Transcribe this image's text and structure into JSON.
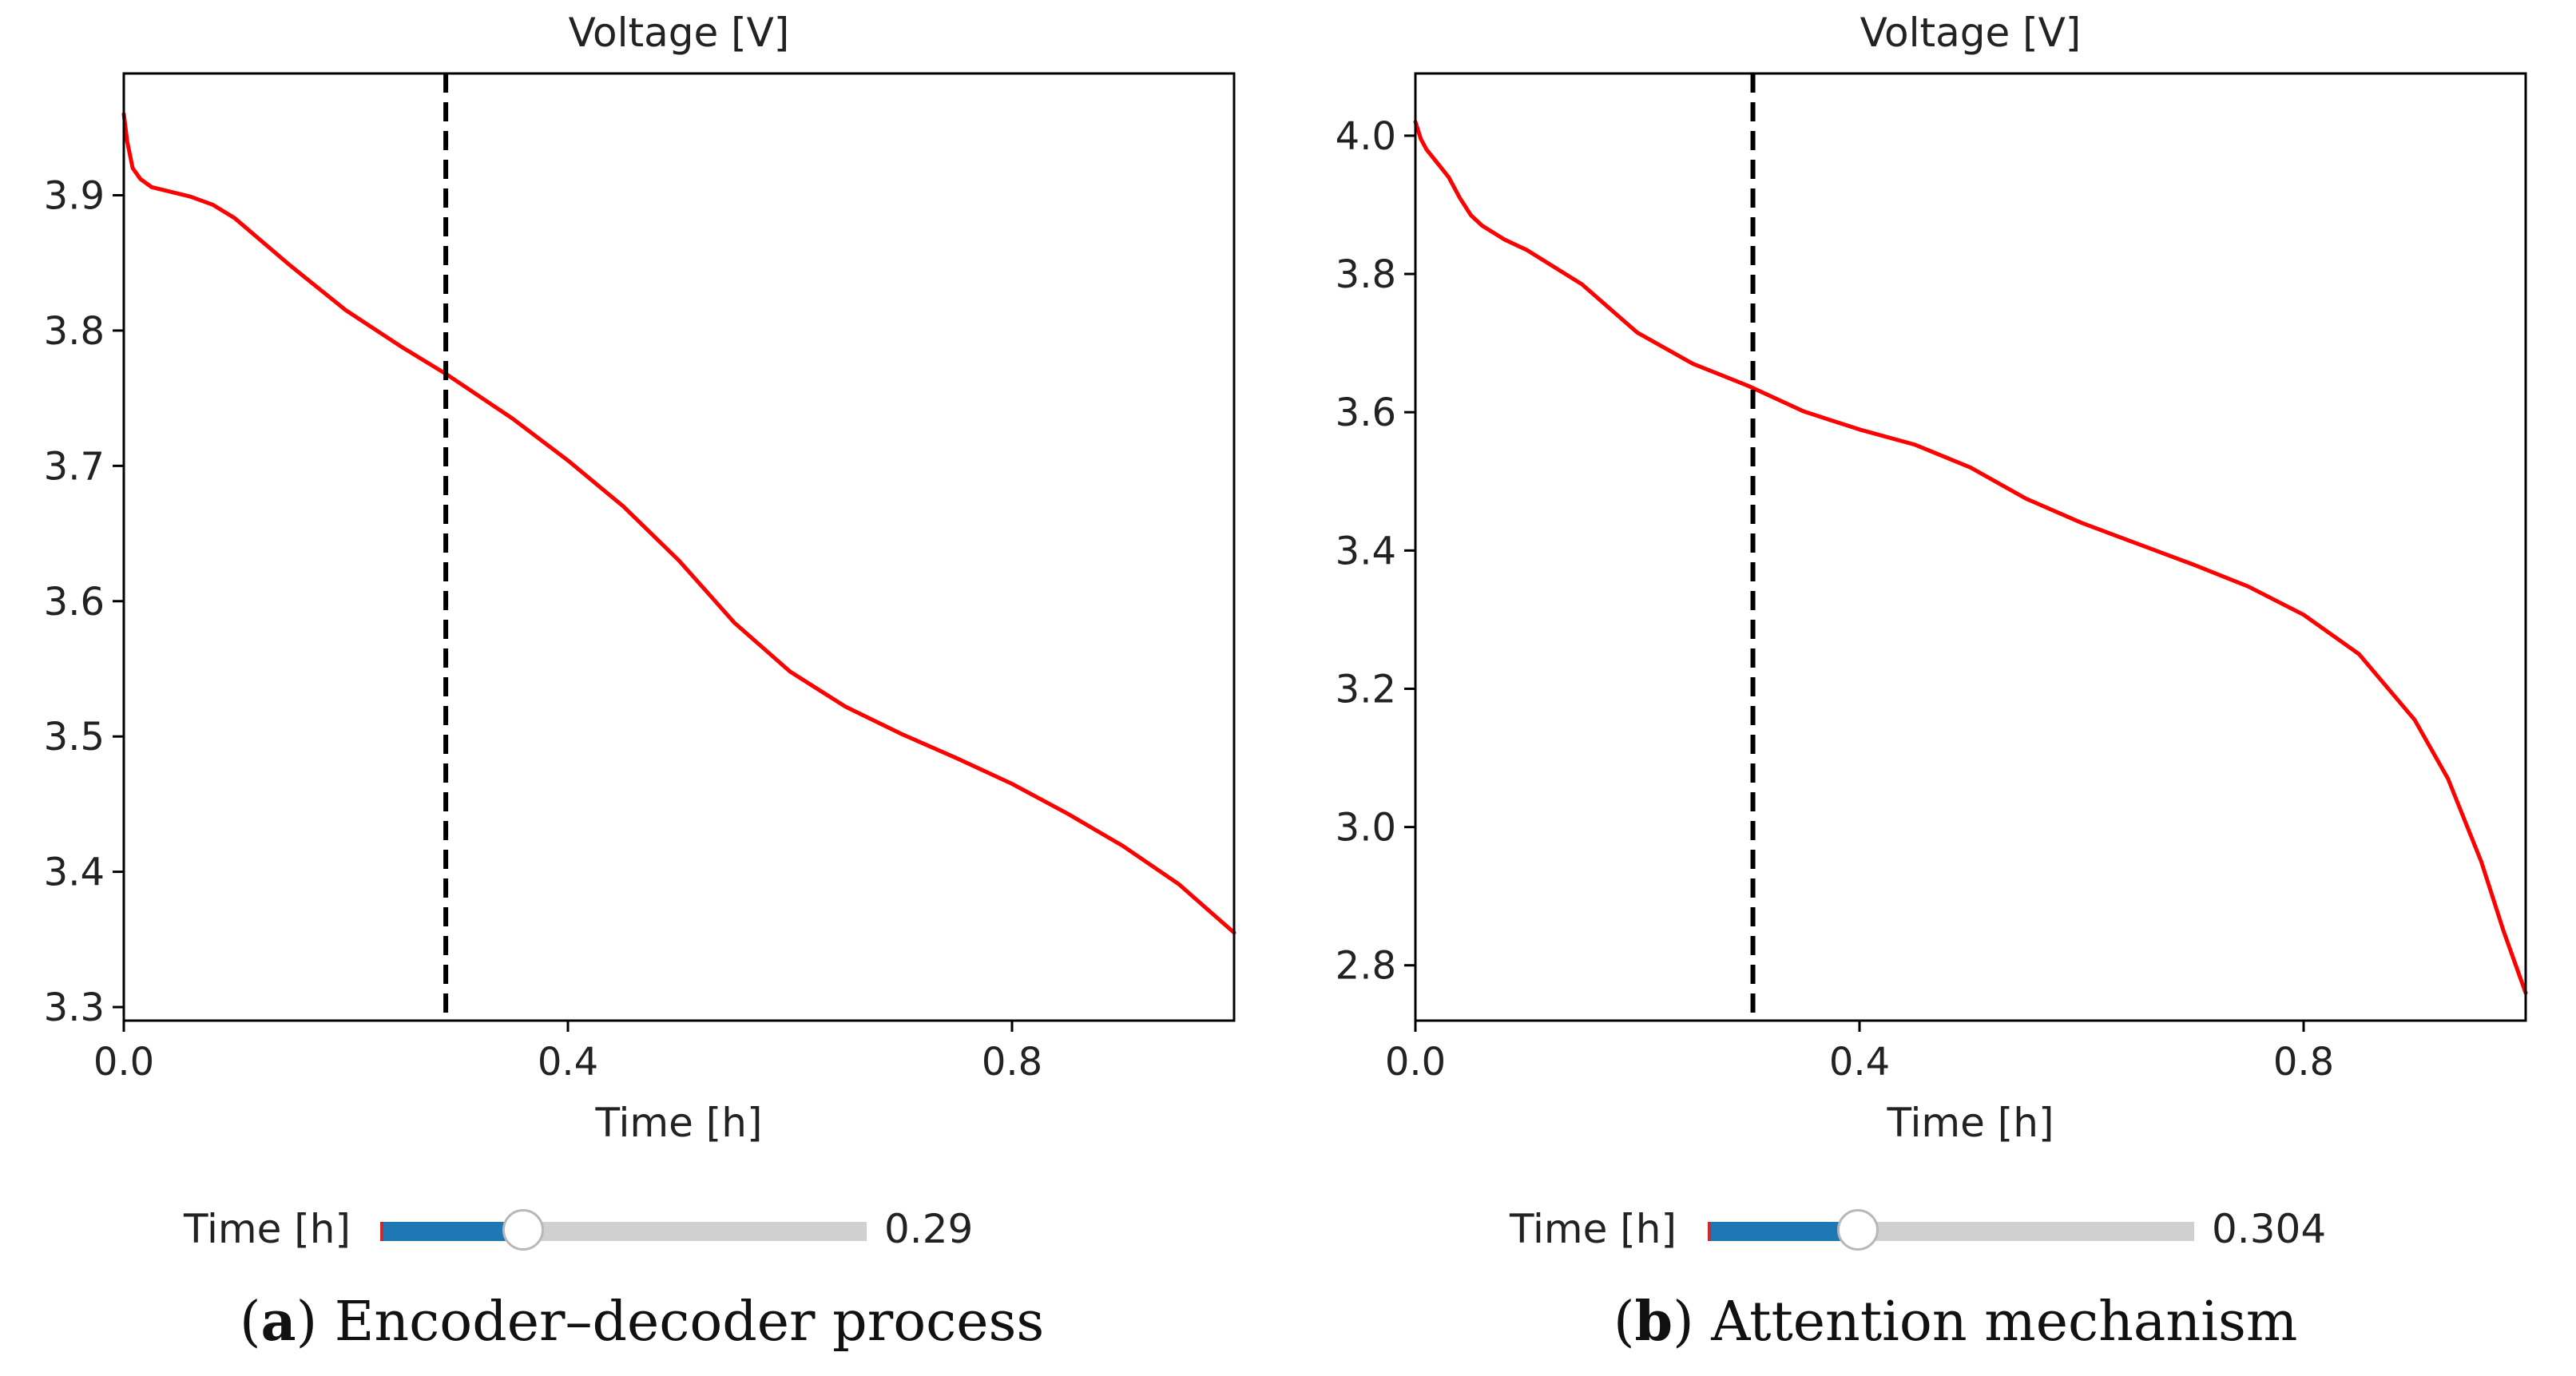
{
  "colors": {
    "curve": "#ff0000",
    "marker": "#000000",
    "slider_fill": "#1f77b4",
    "slider_track": "#d0d0d0"
  },
  "panels": [
    {
      "caption": {
        "letter": "a",
        "text": "Encoder–decoder process"
      },
      "slider": {
        "label": "Time [h]",
        "value": 0.29,
        "value_text": "0.29",
        "min": 0,
        "max": 1
      }
    },
    {
      "caption": {
        "letter": "b",
        "text": "Attention mechanism"
      },
      "slider": {
        "label": "Time [h]",
        "value": 0.304,
        "value_text": "0.304",
        "min": 0,
        "max": 1
      }
    }
  ],
  "chart_data": [
    {
      "type": "line",
      "title": "Voltage [V]",
      "xlabel": "Time [h]",
      "ylabel": "",
      "xlim": [
        0,
        1
      ],
      "ylim": [
        3.29,
        3.99
      ],
      "xticks": [
        0.0,
        0.4,
        0.8
      ],
      "xtick_labels": [
        "0.0",
        "0.4",
        "0.8"
      ],
      "yticks": [
        3.3,
        3.4,
        3.5,
        3.6,
        3.7,
        3.8,
        3.9
      ],
      "ytick_labels": [
        "3.3",
        "3.4",
        "3.5",
        "3.6",
        "3.7",
        "3.8",
        "3.9"
      ],
      "grid": false,
      "vline_x": 0.29,
      "series": [
        {
          "color": "#ff0000",
          "x": [
            0,
            0.003,
            0.008,
            0.015,
            0.025,
            0.04,
            0.06,
            0.08,
            0.1,
            0.15,
            0.2,
            0.25,
            0.29,
            0.35,
            0.4,
            0.45,
            0.5,
            0.55,
            0.6,
            0.65,
            0.7,
            0.75,
            0.8,
            0.85,
            0.9,
            0.95,
            1.0
          ],
          "y": [
            3.96,
            3.94,
            3.92,
            3.912,
            3.906,
            3.903,
            3.899,
            3.893,
            3.883,
            3.848,
            3.815,
            3.788,
            3.768,
            3.735,
            3.704,
            3.67,
            3.63,
            3.584,
            3.548,
            3.522,
            3.502,
            3.484,
            3.465,
            3.443,
            3.419,
            3.391,
            3.355
          ]
        }
      ]
    },
    {
      "type": "line",
      "title": "Voltage [V]",
      "xlabel": "Time [h]",
      "ylabel": "",
      "xlim": [
        0,
        1
      ],
      "ylim": [
        2.72,
        4.09
      ],
      "xticks": [
        0.0,
        0.4,
        0.8
      ],
      "xtick_labels": [
        "0.0",
        "0.4",
        "0.8"
      ],
      "yticks": [
        2.8,
        3.0,
        3.2,
        3.4,
        3.6,
        3.8,
        4.0
      ],
      "ytick_labels": [
        "2.8",
        "3.0",
        "3.2",
        "3.4",
        "3.6",
        "3.8",
        "4.0"
      ],
      "grid": false,
      "vline_x": 0.304,
      "series": [
        {
          "color": "#ff0000",
          "x": [
            0,
            0.005,
            0.01,
            0.02,
            0.03,
            0.04,
            0.05,
            0.06,
            0.08,
            0.1,
            0.15,
            0.2,
            0.25,
            0.3,
            0.35,
            0.4,
            0.45,
            0.5,
            0.55,
            0.6,
            0.65,
            0.7,
            0.75,
            0.8,
            0.85,
            0.9,
            0.93,
            0.96,
            0.98,
            1.0
          ],
          "y": [
            4.02,
            3.995,
            3.98,
            3.96,
            3.94,
            3.91,
            3.885,
            3.87,
            3.85,
            3.835,
            3.785,
            3.715,
            3.67,
            3.638,
            3.601,
            3.575,
            3.553,
            3.52,
            3.475,
            3.44,
            3.41,
            3.38,
            3.348,
            3.307,
            3.25,
            3.155,
            3.07,
            2.95,
            2.85,
            2.76
          ]
        }
      ]
    }
  ]
}
